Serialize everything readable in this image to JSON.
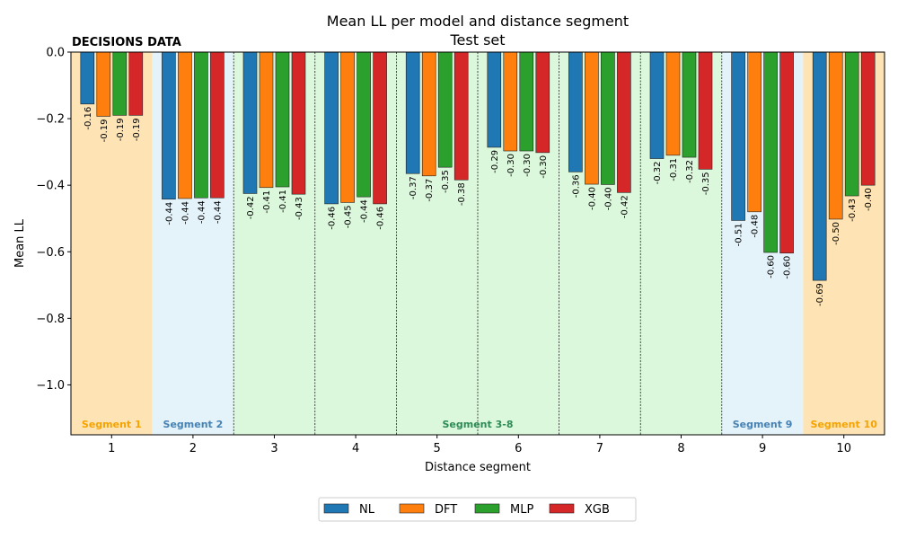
{
  "chart_data": {
    "type": "bar",
    "title": "Mean LL per model and distance segment",
    "subtitle": "Test set",
    "corner_label": "DECISIONS DATA",
    "xlabel": "Distance segment",
    "ylabel": "Mean LL",
    "ylim": [
      -1.15,
      0.0
    ],
    "yticks": [
      0.0,
      -0.2,
      -0.4,
      -0.6,
      -0.8,
      -1.0
    ],
    "ytick_labels": [
      "0.0",
      "−0.2",
      "−0.4",
      "−0.6",
      "−0.8",
      "−1.0"
    ],
    "categories": [
      "1",
      "2",
      "3",
      "4",
      "5",
      "6",
      "7",
      "8",
      "9",
      "10"
    ],
    "series": [
      {
        "name": "NL",
        "color": "#1f77b4",
        "values": [
          -0.156,
          -0.442,
          -0.425,
          -0.456,
          -0.365,
          -0.286,
          -0.36,
          -0.32,
          -0.506,
          -0.686
        ]
      },
      {
        "name": "DFT",
        "color": "#ff7f0e",
        "values": [
          -0.193,
          -0.44,
          -0.407,
          -0.452,
          -0.372,
          -0.297,
          -0.397,
          -0.31,
          -0.48,
          -0.502
        ]
      },
      {
        "name": "MLP",
        "color": "#2ca02c",
        "values": [
          -0.19,
          -0.438,
          -0.405,
          -0.435,
          -0.346,
          -0.297,
          -0.398,
          -0.316,
          -0.602,
          -0.432
        ]
      },
      {
        "name": "XGB",
        "color": "#d62728",
        "values": [
          -0.19,
          -0.438,
          -0.427,
          -0.456,
          -0.384,
          -0.302,
          -0.422,
          -0.352,
          -0.604,
          -0.4
        ]
      }
    ],
    "data_labels": [
      [
        "-0.16",
        "-0.19",
        "-0.19",
        "-0.19"
      ],
      [
        "-0.44",
        "-0.44",
        "-0.44",
        "-0.44"
      ],
      [
        "-0.42",
        "-0.41",
        "-0.41",
        "-0.43"
      ],
      [
        "-0.46",
        "-0.45",
        "-0.44",
        "-0.46"
      ],
      [
        "-0.37",
        "-0.37",
        "-0.35",
        "-0.38"
      ],
      [
        "-0.29",
        "-0.30",
        "-0.30",
        "-0.30"
      ],
      [
        "-0.36",
        "-0.40",
        "-0.40",
        "-0.42"
      ],
      [
        "-0.32",
        "-0.31",
        "-0.32",
        "-0.35"
      ],
      [
        "-0.51",
        "-0.48",
        "-0.60",
        "-0.60"
      ],
      [
        "-0.69",
        "-0.50",
        "-0.43",
        "-0.40"
      ]
    ],
    "segment_groups": [
      {
        "label": "Segment 1",
        "from": 1,
        "to": 1,
        "band_color": "#fee4b4",
        "text_color": "#f5a300"
      },
      {
        "label": "Segment 2",
        "from": 2,
        "to": 2,
        "band_color": "#e4f2f9",
        "text_color": "#4682b4"
      },
      {
        "label": "Segment 3-8",
        "from": 3,
        "to": 8,
        "band_color": "#dcf8dc",
        "text_color": "#2e8b57"
      },
      {
        "label": "Segment 9",
        "from": 9,
        "to": 9,
        "band_color": "#e4f2f9",
        "text_color": "#4682b4"
      },
      {
        "label": "Segment 10",
        "from": 10,
        "to": 10,
        "band_color": "#fee4b4",
        "text_color": "#f5a300"
      }
    ],
    "grid": false,
    "legend": {
      "placement": "bottom-center",
      "entries": [
        "NL",
        "DFT",
        "MLP",
        "XGB"
      ]
    }
  }
}
